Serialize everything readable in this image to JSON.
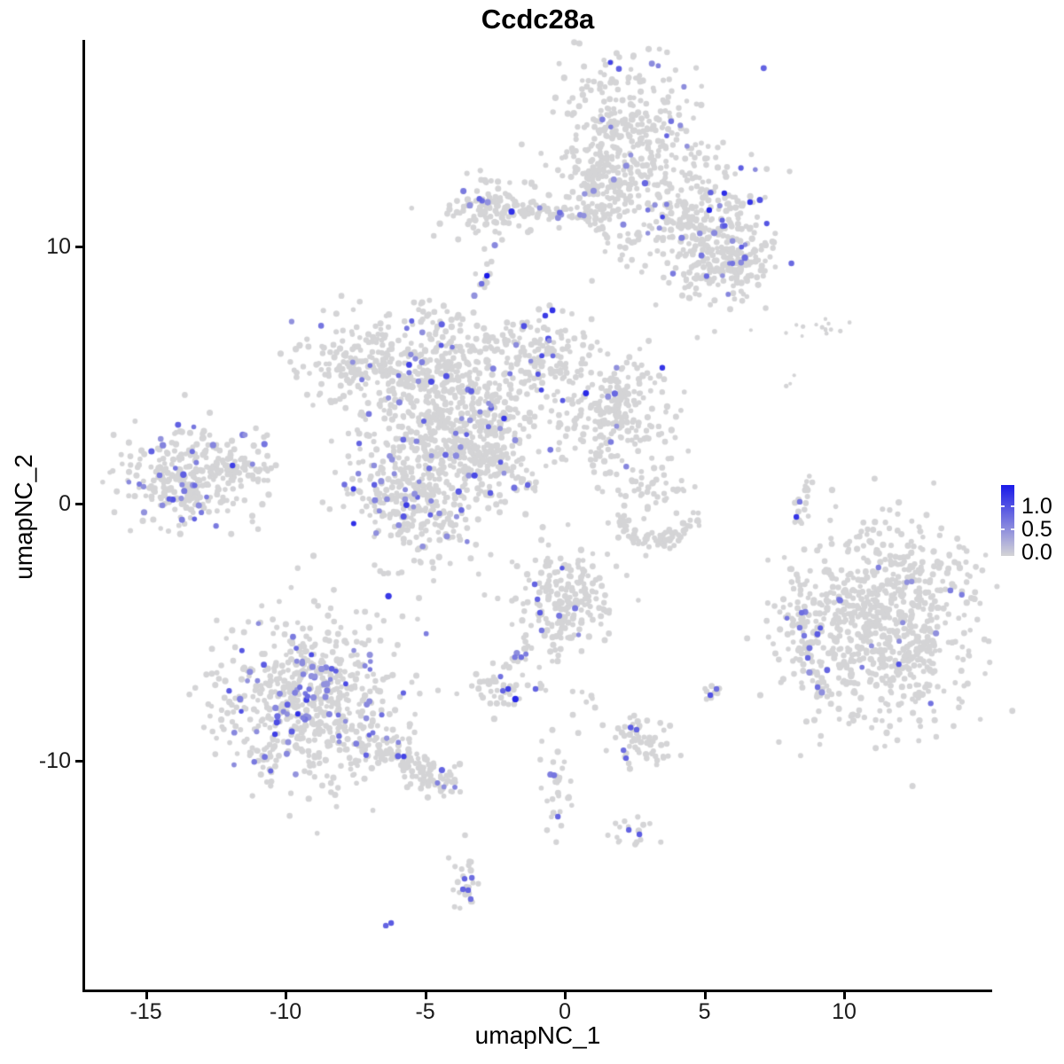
{
  "title": "Ccdc28a",
  "axes": {
    "x_label": "umapNC_1",
    "y_label": "umapNC_2",
    "x_tick_labels": [
      "-15",
      "-10",
      "-5",
      "0",
      "5",
      "10"
    ],
    "y_tick_labels": [
      "-10",
      "0",
      "10"
    ]
  },
  "legend": {
    "labels": [
      "1.0",
      "0.5",
      "0.0"
    ]
  },
  "chart_data": {
    "type": "scatter",
    "title": "Ccdc28a",
    "xlabel": "umapNC_1",
    "ylabel": "umapNC_2",
    "xlim": [
      -17.21,
      15.27
    ],
    "ylim": [
      -18.93,
      18.03
    ],
    "x_ticks": [
      -15,
      -10,
      -5,
      0,
      5,
      10
    ],
    "y_ticks": [
      -10,
      0,
      10
    ],
    "grid": false,
    "legend_position": "right",
    "legend_ticks": [
      1.0,
      0.5,
      0.0
    ],
    "color_low": "#D4D4D6",
    "color_high": "#1A1AE9",
    "point_radius": 3.2,
    "seed": 42,
    "clusters": [
      {
        "name": "top-main-upper",
        "kind": "gauss",
        "cx": 2.16,
        "cy": 13.9,
        "sx": 1.27,
        "sy": 1.66,
        "n": 380,
        "frac": 0.05
      },
      {
        "name": "top-main-right-wing",
        "kind": "gauss",
        "cx": 4.86,
        "cy": 10.79,
        "sx": 1.21,
        "sy": 1.38,
        "n": 300,
        "frac": 0.09
      },
      {
        "name": "top-main-lower-right",
        "kind": "gauss",
        "cx": 5.87,
        "cy": 9.24,
        "sx": 0.76,
        "sy": 0.69,
        "n": 130,
        "frac": 0.06
      },
      {
        "name": "top-left-arm-blob",
        "kind": "gauss",
        "cx": -2.57,
        "cy": 11.48,
        "sx": 0.83,
        "sy": 0.55,
        "n": 120,
        "frac": 0.05
      },
      {
        "name": "top-chain",
        "kind": "line",
        "x1": -1.56,
        "y1": 11.41,
        "x2": 0.89,
        "y2": 11.24,
        "n": 45,
        "jitter": 0.14,
        "frac": 0.12
      },
      {
        "name": "top-bridge",
        "kind": "gauss",
        "cx": 1.37,
        "cy": 11.93,
        "sx": 0.57,
        "sy": 1.1,
        "n": 90,
        "frac": 0.04
      },
      {
        "name": "blue-dot-islet",
        "kind": "gauss",
        "cx": -2.86,
        "cy": 8.79,
        "sx": 0.16,
        "sy": 0.24,
        "n": 9,
        "frac": 0
      },
      {
        "name": "islet-upper-left",
        "kind": "gauss",
        "cx": -4.92,
        "cy": 7.45,
        "sx": 0.22,
        "sy": 0.31,
        "n": 14,
        "frac": 0.15
      },
      {
        "name": "islet-upper-left-b",
        "kind": "gauss",
        "cx": -5.3,
        "cy": 5.86,
        "sx": 0.19,
        "sy": 0.34,
        "n": 10,
        "frac": 0.1
      },
      {
        "name": "central-core",
        "kind": "gauss",
        "cx": -4.03,
        "cy": 3.31,
        "sx": 1.43,
        "sy": 1.45,
        "n": 480,
        "frac": 0.07
      },
      {
        "name": "central-upper-left-arm",
        "kind": "gauss",
        "cx": -6.89,
        "cy": 5.52,
        "sx": 1.33,
        "sy": 0.83,
        "n": 220,
        "frac": 0.07
      },
      {
        "name": "central-top-arm",
        "kind": "gauss",
        "cx": -4.25,
        "cy": 5.86,
        "sx": 0.38,
        "sy": 0.9,
        "n": 55,
        "frac": 0.04
      },
      {
        "name": "central-upper-right-arm",
        "kind": "gauss",
        "cx": -1.14,
        "cy": 5.83,
        "sx": 0.89,
        "sy": 0.83,
        "n": 160,
        "frac": 0.05
      },
      {
        "name": "central-right-lobe",
        "kind": "gauss",
        "cx": 1.75,
        "cy": 3.59,
        "sx": 1.05,
        "sy": 1.24,
        "n": 260,
        "frac": 0.035
      },
      {
        "name": "central-lower-left",
        "kind": "gauss",
        "cx": -5.43,
        "cy": 0.34,
        "sx": 1.33,
        "sy": 1.31,
        "n": 340,
        "frac": 0.09
      },
      {
        "name": "central-bridge",
        "kind": "gauss",
        "cx": -2.67,
        "cy": 2.07,
        "sx": 0.51,
        "sy": 0.83,
        "n": 90,
        "frac": 0.06
      },
      {
        "name": "central-thin-tail",
        "kind": "line",
        "x1": -2.7,
        "y1": 1.86,
        "x2": -1.14,
        "y2": 0.55,
        "n": 28,
        "jitter": 0.1,
        "frac": 0.04
      },
      {
        "name": "stray-left-of-core",
        "kind": "gauss",
        "cx": -8.95,
        "cy": 4.24,
        "sx": 0.63,
        "sy": 0.52,
        "n": 6,
        "frac": 0
      },
      {
        "name": "left-main",
        "kind": "gauss",
        "cx": -13.4,
        "cy": 0.97,
        "sx": 1.27,
        "sy": 0.93,
        "n": 310,
        "frac": 0.13
      },
      {
        "name": "left-tip",
        "kind": "gauss",
        "cx": -11.46,
        "cy": 1.41,
        "sx": 0.51,
        "sy": 0.24,
        "n": 35,
        "frac": 0.08
      },
      {
        "name": "left-trail-up",
        "kind": "gauss",
        "cx": -10.95,
        "cy": 2.62,
        "sx": 0.25,
        "sy": 0.41,
        "n": 7,
        "frac": 0.3
      },
      {
        "name": "crescent",
        "kind": "arc",
        "cx": 3.27,
        "cy": -0.14,
        "rx": 1.33,
        "ry": 1.31,
        "a1": 190,
        "a2": 350,
        "n": 85,
        "jitter": 0.18,
        "frac": 0
      },
      {
        "name": "crescent-fill",
        "kind": "gauss",
        "cx": 3.17,
        "cy": 0.69,
        "sx": 0.79,
        "sy": 0.48,
        "n": 40,
        "frac": 0
      },
      {
        "name": "slanted-line-islet",
        "kind": "line",
        "x1": 8.29,
        "y1": -0.86,
        "x2": 8.76,
        "y2": 1.07,
        "n": 16,
        "jitter": 0.09,
        "frac": 0
      },
      {
        "name": "right-main",
        "kind": "gauss",
        "cx": 11.21,
        "cy": -4.62,
        "sx": 1.65,
        "sy": 1.9,
        "n": 800,
        "frac": 0.022
      },
      {
        "name": "right-satellite",
        "kind": "gauss",
        "cx": 8.48,
        "cy": -4.62,
        "sx": 0.35,
        "sy": 0.45,
        "n": 28,
        "frac": 0.1
      },
      {
        "name": "right-trail",
        "kind": "line",
        "x1": 8.54,
        "y1": -5.48,
        "x2": 9.17,
        "y2": -7.59,
        "n": 22,
        "jitter": 0.13,
        "frac": 0.1
      },
      {
        "name": "bottom-left-main",
        "kind": "gauss",
        "cx": -9.05,
        "cy": -7.66,
        "sx": 1.65,
        "sy": 1.59,
        "n": 650,
        "frac": 0.12
      },
      {
        "name": "bottom-left-tail",
        "kind": "line",
        "x1": -6.73,
        "y1": -9.55,
        "x2": -4.1,
        "y2": -10.9,
        "n": 110,
        "jitter": 0.32,
        "frac": 0.045
      },
      {
        "name": "teardrop",
        "kind": "gauss",
        "cx": -0.03,
        "cy": -3.79,
        "sx": 0.89,
        "sy": 1.03,
        "n": 210,
        "frac": 0.02
      },
      {
        "name": "teardrop-trail",
        "kind": "line",
        "x1": -1.24,
        "y1": -5.31,
        "x2": -1.78,
        "y2": -6.21,
        "n": 16,
        "jitter": 0.1,
        "frac": 0.1
      },
      {
        "name": "small-left-blob",
        "kind": "gauss",
        "cx": -2.51,
        "cy": -7.17,
        "sx": 0.48,
        "sy": 0.38,
        "n": 42,
        "frac": 0.02
      },
      {
        "name": "small-centre-pair",
        "kind": "gauss",
        "cx": -1.05,
        "cy": -7.28,
        "sx": 0.19,
        "sy": 0.16,
        "n": 5,
        "frac": 0
      },
      {
        "name": "pair-right",
        "kind": "gauss",
        "cx": 5.33,
        "cy": -7.34,
        "sx": 0.22,
        "sy": 0.21,
        "n": 9,
        "frac": 0
      },
      {
        "name": "lower-mid-blob",
        "kind": "gauss",
        "cx": 2.7,
        "cy": -9.31,
        "sx": 0.63,
        "sy": 0.52,
        "n": 55,
        "frac": 0.04
      },
      {
        "name": "vertical-trail",
        "kind": "gauss",
        "cx": -0.32,
        "cy": -11.1,
        "sx": 0.29,
        "sy": 0.93,
        "n": 32,
        "frac": 0.05
      },
      {
        "name": "small-bottom-mid",
        "kind": "gauss",
        "cx": 2.38,
        "cy": -12.72,
        "sx": 0.44,
        "sy": 0.28,
        "n": 16,
        "frac": 0
      },
      {
        "name": "bottom-column",
        "kind": "gauss",
        "cx": -3.49,
        "cy": -14.72,
        "sx": 0.25,
        "sy": 0.66,
        "n": 24,
        "frac": 0.04
      },
      {
        "name": "sparse-top-right",
        "kind": "gauss",
        "cx": 8.92,
        "cy": 6.76,
        "sx": 1.08,
        "sy": 0.28,
        "n": 15,
        "frac": 0,
        "r": 2.3
      },
      {
        "name": "sparse-pair-right",
        "kind": "gauss",
        "cx": 8.1,
        "cy": 4.69,
        "sx": 0.13,
        "sy": 0.17,
        "n": 3,
        "frac": 0,
        "r": 2.3
      },
      {
        "name": "islet-mid",
        "kind": "gauss",
        "cx": 0.92,
        "cy": -7.69,
        "sx": 0.25,
        "sy": 0.21,
        "n": 7,
        "frac": 0
      }
    ],
    "extra_points": [
      {
        "x": -2.79,
        "y": 8.86,
        "t": 1.0
      },
      {
        "x": -2.98,
        "y": 8.55,
        "t": 0.55
      },
      {
        "x": 5.17,
        "y": 11.41,
        "t": 0.95
      },
      {
        "x": 5.71,
        "y": 12.07,
        "t": 0.9
      },
      {
        "x": 6.63,
        "y": 11.72,
        "t": 0.85
      },
      {
        "x": 3.49,
        "y": 5.28,
        "t": 0.85
      },
      {
        "x": -1.33,
        "y": 0.72,
        "t": 0.6
      },
      {
        "x": -11.9,
        "y": 1.48,
        "t": 0.8
      },
      {
        "x": 8.41,
        "y": 0.07,
        "t": 0.5
      },
      {
        "x": 8.29,
        "y": -0.52,
        "t": 0.85
      },
      {
        "x": 8.7,
        "y": -6.0,
        "t": 0.6
      },
      {
        "x": 9.05,
        "y": -7.14,
        "t": 0.55
      },
      {
        "x": -10.38,
        "y": -8.97,
        "t": 0.8
      },
      {
        "x": -1.08,
        "y": -3.14,
        "t": 0.6
      },
      {
        "x": -0.98,
        "y": -3.72,
        "t": 0.6
      },
      {
        "x": -0.89,
        "y": -4.24,
        "t": 0.65
      },
      {
        "x": -0.83,
        "y": -4.93,
        "t": 0.5
      },
      {
        "x": -1.56,
        "y": -5.97,
        "t": 0.55
      },
      {
        "x": -2.03,
        "y": -7.21,
        "t": 0.8
      },
      {
        "x": -2.22,
        "y": -7.28,
        "t": 0.6
      },
      {
        "x": -1.05,
        "y": -7.21,
        "t": 0.6
      },
      {
        "x": 5.21,
        "y": -7.45,
        "t": 0.7
      },
      {
        "x": 5.43,
        "y": -7.21,
        "t": 0.55
      },
      {
        "x": 2.19,
        "y": -9.9,
        "t": 0.6
      },
      {
        "x": 2.1,
        "y": -9.59,
        "t": 0.55
      },
      {
        "x": 2.57,
        "y": -8.79,
        "t": 0.6
      },
      {
        "x": -0.25,
        "y": -12.17,
        "t": 0.6
      },
      {
        "x": 2.29,
        "y": -12.69,
        "t": 0.6
      },
      {
        "x": 2.67,
        "y": -12.86,
        "t": 0.65
      },
      {
        "x": -3.59,
        "y": -14.59,
        "t": 0.6
      },
      {
        "x": -3.33,
        "y": -14.55,
        "t": 0.55
      },
      {
        "x": -3.65,
        "y": -15.0,
        "t": 0.6
      },
      {
        "x": -3.46,
        "y": -15.03,
        "t": 0.6
      },
      {
        "x": -3.37,
        "y": -15.38,
        "t": 0.55
      },
      {
        "x": -6.41,
        "y": -16.41,
        "t": 0.6
      },
      {
        "x": -6.22,
        "y": -16.31,
        "t": 0.65
      },
      {
        "x": 8.48,
        "y": -4.24,
        "t": 0.55
      },
      {
        "x": 8.41,
        "y": -4.83,
        "t": 0.5
      },
      {
        "x": 8.57,
        "y": -5.14,
        "t": 0.5
      }
    ]
  }
}
